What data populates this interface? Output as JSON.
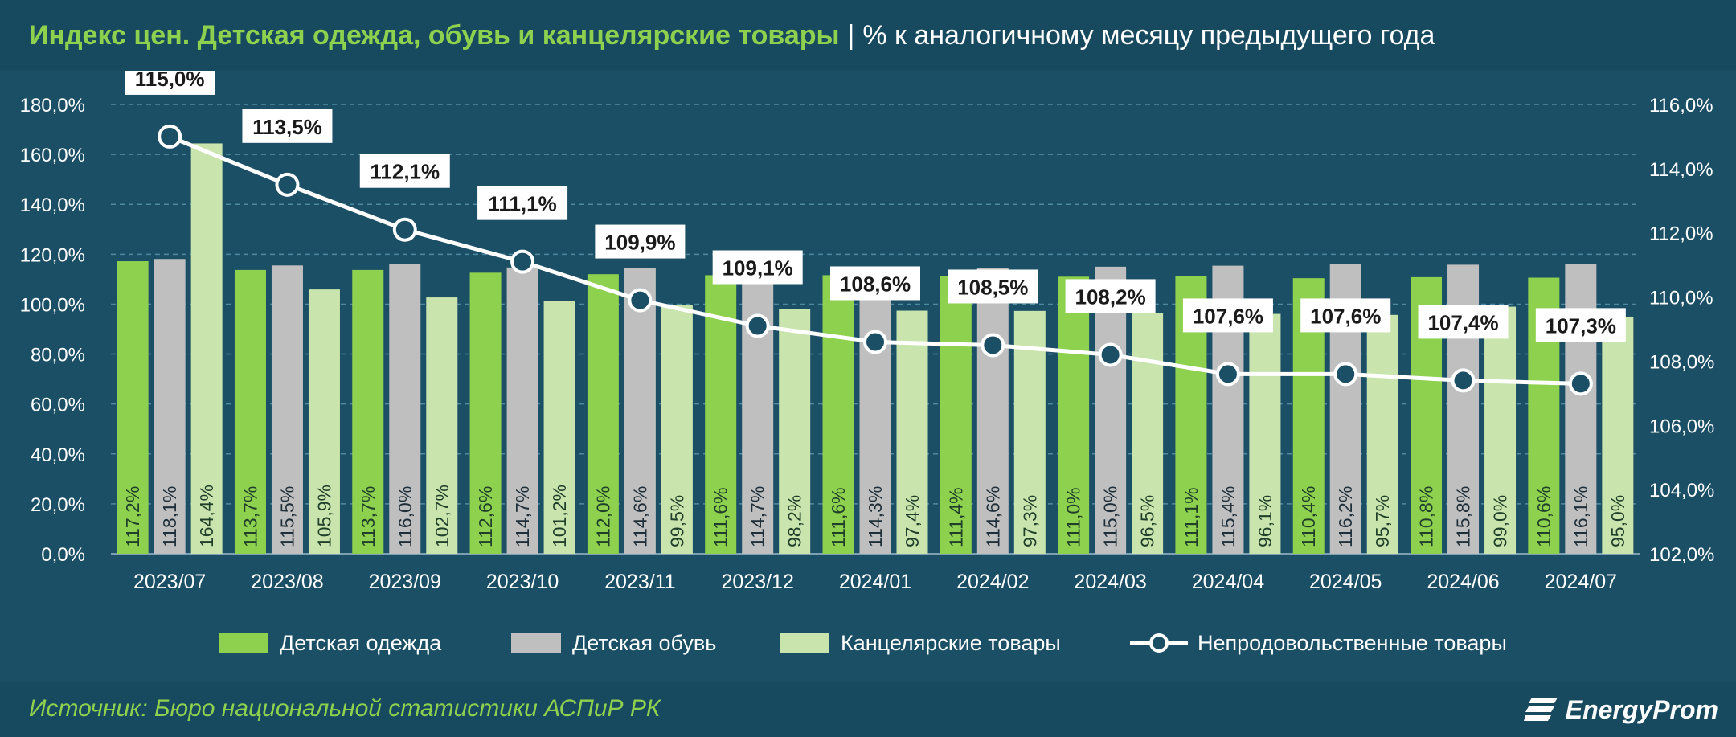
{
  "header": {
    "title_main": "Индекс цен. Детская одежда, обувь и канцелярские товары",
    "title_sep": "|",
    "title_sub": "% к аналогичному месяцу предыдущего года"
  },
  "footer": {
    "source": "Источник: Бюро национальной статистики АСПиР РК",
    "logo": "EnergyProm"
  },
  "colors": {
    "background": "#1b4f66",
    "clothing": "#8ed14f",
    "shoes": "#bfbfbf",
    "stationery": "#c9e4ad",
    "line": "#ffffff"
  },
  "chart_data": {
    "type": "bar",
    "categories": [
      "2023/07",
      "2023/08",
      "2023/09",
      "2023/10",
      "2023/11",
      "2023/12",
      "2024/01",
      "2024/02",
      "2024/03",
      "2024/04",
      "2024/05",
      "2024/06",
      "2024/07"
    ],
    "ylim": [
      0,
      180
    ],
    "y_ticks": [
      "0,0%",
      "20,0%",
      "40,0%",
      "60,0%",
      "80,0%",
      "100,0%",
      "120,0%",
      "140,0%",
      "160,0%",
      "180,0%"
    ],
    "y2lim": [
      102,
      116
    ],
    "y2_ticks": [
      "102,0%",
      "104,0%",
      "106,0%",
      "108,0%",
      "110,0%",
      "112,0%",
      "114,0%",
      "116,0%"
    ],
    "grid": true,
    "legend_position": "bottom",
    "series": [
      {
        "name": "Детская одежда",
        "type": "bar",
        "axis": "left",
        "values": [
          117.2,
          113.7,
          113.7,
          112.6,
          112.0,
          111.6,
          111.6,
          111.4,
          111.0,
          111.1,
          110.4,
          110.8,
          110.6
        ],
        "labels": [
          "117,2%",
          "113,7%",
          "113,7%",
          "112,6%",
          "112,0%",
          "111,6%",
          "111,6%",
          "111,4%",
          "111,0%",
          "111,1%",
          "110,4%",
          "110,8%",
          "110,6%"
        ]
      },
      {
        "name": "Детская обувь",
        "type": "bar",
        "axis": "left",
        "values": [
          118.1,
          115.5,
          116.0,
          114.7,
          114.6,
          114.7,
          114.3,
          114.6,
          115.0,
          115.4,
          116.2,
          115.8,
          116.1
        ],
        "labels": [
          "118,1%",
          "115,5%",
          "116,0%",
          "114,7%",
          "114,6%",
          "114,7%",
          "114,3%",
          "114,6%",
          "115,0%",
          "115,4%",
          "116,2%",
          "115,8%",
          "116,1%"
        ]
      },
      {
        "name": "Канцелярские товары",
        "type": "bar",
        "axis": "left",
        "values": [
          164.4,
          105.9,
          102.7,
          101.2,
          99.5,
          98.2,
          97.4,
          97.3,
          96.5,
          96.1,
          95.7,
          99.0,
          95.0
        ],
        "labels": [
          "164,4%",
          "105,9%",
          "102,7%",
          "101,2%",
          "99,5%",
          "98,2%",
          "97,4%",
          "97,3%",
          "96,5%",
          "96,1%",
          "95,7%",
          "99,0%",
          "95,0%"
        ]
      },
      {
        "name": "Непродовольственные товары",
        "type": "line",
        "axis": "right",
        "values": [
          115.0,
          113.5,
          112.1,
          111.1,
          109.9,
          109.1,
          108.6,
          108.5,
          108.2,
          107.6,
          107.6,
          107.4,
          107.3
        ],
        "labels": [
          "115,0%",
          "113,5%",
          "112,1%",
          "111,1%",
          "109,9%",
          "109,1%",
          "108,6%",
          "108,5%",
          "108,2%",
          "107,6%",
          "107,6%",
          "107,4%",
          "107,3%"
        ]
      }
    ]
  }
}
